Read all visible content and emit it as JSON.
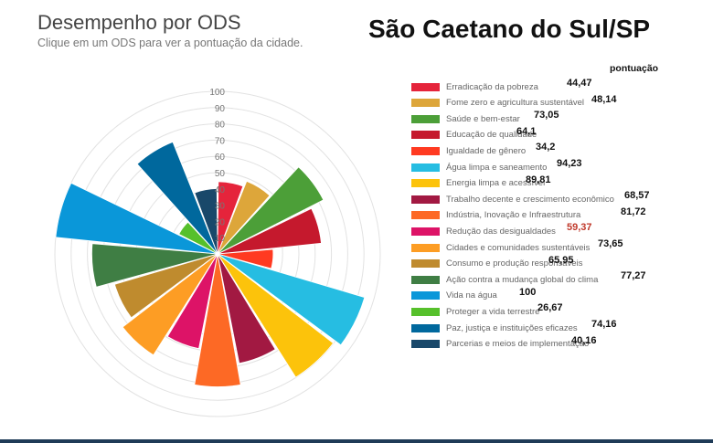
{
  "header": {
    "title": "Desempenho por ODS",
    "subtitle": "Clique em um ODS para ver a pontuação da cidade.",
    "city": "São Caetano do Sul/SP",
    "score_column": "pontuação"
  },
  "chart_data": {
    "type": "polar-bar",
    "title": "Desempenho por ODS",
    "radial_ticks": [
      "10",
      "20",
      "30",
      "40",
      "50",
      "60",
      "70",
      "80",
      "90",
      "100"
    ],
    "rlim": [
      0,
      100
    ],
    "grid": true,
    "legend_position": "right",
    "categories": [
      "Erradicação da pobreza",
      "Fome zero e agricultura sustentável",
      "Saúde e bem-estar",
      "Educação de qualidade",
      "Igualdade de gênero",
      "Água limpa e saneamento",
      "Energia limpa e acessível",
      "Trabalho decente e crescimento econômico",
      "Indústria, Inovação e Infraestrutura",
      "Redução das desigualdades",
      "Cidades e comunidades sustentáveis",
      "Consumo e produção responsáveis",
      "Ação contra a mudança global do clima",
      "Vida na água",
      "Proteger a vida terrestre",
      "Paz, justiça e instituições eficazes",
      "Parcerias e meios de implementação"
    ],
    "values": [
      44.47,
      48.14,
      73.05,
      64.1,
      34.2,
      94.23,
      89.81,
      68.57,
      81.72,
      59.37,
      73.65,
      65.95,
      77.27,
      100,
      26.67,
      74.16,
      40.16
    ],
    "value_labels": [
      "44,47",
      "48,14",
      "73,05",
      "64,1",
      "34,2",
      "94,23",
      "89,81",
      "68,57",
      "81,72",
      "59,37",
      "73,65",
      "65,95",
      "77,27",
      "100",
      "26,67",
      "74,16",
      "40,16"
    ],
    "highlighted_value_index": 9,
    "colors": [
      "#e5243b",
      "#dda63a",
      "#4c9f38",
      "#c5192d",
      "#ff3a21",
      "#26bde2",
      "#fcc30b",
      "#a21942",
      "#fd6925",
      "#dd1367",
      "#fd9d24",
      "#bf8b2e",
      "#3f7e44",
      "#0a97d9",
      "#56c02b",
      "#00689d",
      "#19486a"
    ]
  }
}
